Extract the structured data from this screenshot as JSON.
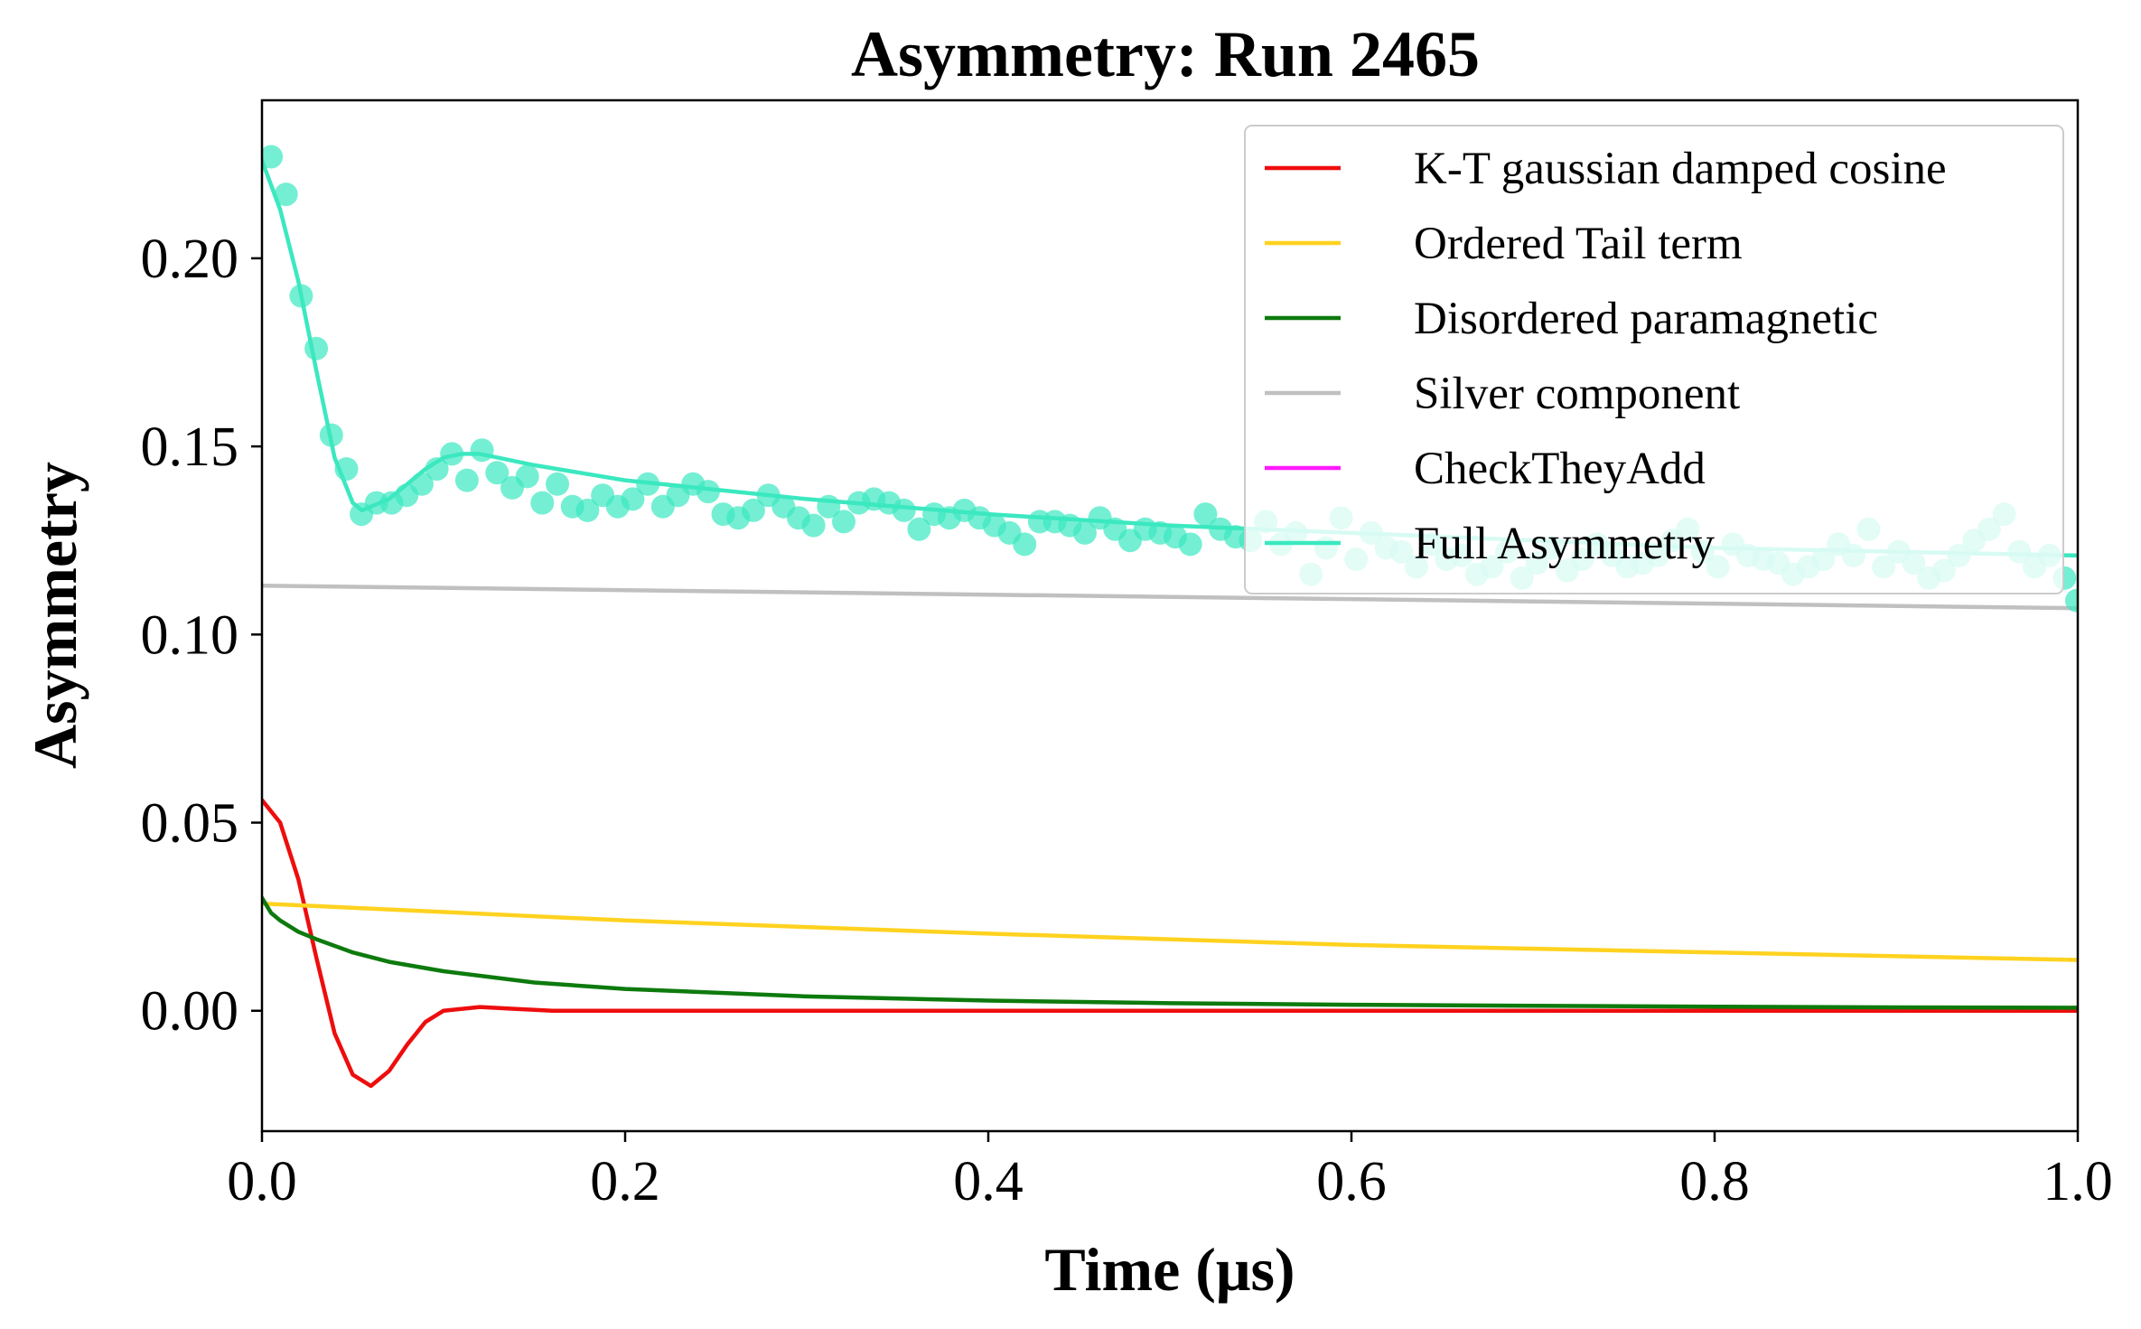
{
  "chart_data": {
    "type": "line",
    "title": "Asymmetry: Run 2465",
    "xlabel": "Time (μs)",
    "ylabel": "Asymmetry",
    "xlim": [
      0,
      1.0
    ],
    "ylim": [
      -0.032,
      0.242
    ],
    "xticks": [
      {
        "value": 0.0,
        "label": "0.0"
      },
      {
        "value": 0.2,
        "label": "0.2"
      },
      {
        "value": 0.4,
        "label": "0.4"
      },
      {
        "value": 0.6,
        "label": "0.6"
      },
      {
        "value": 0.8,
        "label": "0.8"
      },
      {
        "value": 1.0,
        "label": "1.0"
      }
    ],
    "yticks": [
      {
        "value": 0.0,
        "label": "0.00"
      },
      {
        "value": 0.05,
        "label": "0.05"
      },
      {
        "value": 0.1,
        "label": "0.10"
      },
      {
        "value": 0.15,
        "label": "0.15"
      },
      {
        "value": 0.2,
        "label": "0.20"
      }
    ],
    "grid": false,
    "legend_position": "top-right",
    "series": [
      {
        "name": "K-T gaussian damped cosine",
        "color": "#ee0d0d",
        "x": [
          0.0,
          0.01,
          0.02,
          0.03,
          0.04,
          0.05,
          0.06,
          0.07,
          0.08,
          0.09,
          0.1,
          0.12,
          0.14,
          0.16,
          0.2,
          0.4,
          0.6,
          0.8,
          1.0
        ],
        "y": [
          0.056,
          0.05,
          0.035,
          0.014,
          -0.006,
          -0.017,
          -0.02,
          -0.016,
          -0.009,
          -0.003,
          0.0,
          0.001,
          0.0005,
          0.0,
          0.0,
          0.0,
          0.0,
          0.0,
          0.0
        ]
      },
      {
        "name": "Ordered Tail term",
        "color": "#ffd21f",
        "x": [
          0.0,
          0.2,
          0.4,
          0.6,
          0.8,
          1.0
        ],
        "y": [
          0.0285,
          0.024,
          0.0205,
          0.0175,
          0.0155,
          0.0135
        ]
      },
      {
        "name": "Disordered paramagnetic",
        "color": "#0d7a0d",
        "x": [
          0.0,
          0.005,
          0.01,
          0.02,
          0.03,
          0.05,
          0.07,
          0.1,
          0.15,
          0.2,
          0.3,
          0.4,
          0.5,
          0.6,
          0.7,
          0.8,
          0.9,
          1.0
        ],
        "y": [
          0.03,
          0.026,
          0.024,
          0.021,
          0.019,
          0.0155,
          0.013,
          0.0105,
          0.0075,
          0.0058,
          0.0038,
          0.0027,
          0.002,
          0.0016,
          0.0013,
          0.0011,
          0.0009,
          0.0008
        ]
      },
      {
        "name": "Silver component",
        "color": "#c0c0c0",
        "x": [
          0.0,
          1.0
        ],
        "y": [
          0.113,
          0.107
        ]
      },
      {
        "name": "CheckTheyAdd",
        "color": "#ff1aff",
        "x": [],
        "y": []
      },
      {
        "name": "Full Asymmetry",
        "color": "#3be8c0",
        "x": [
          0.0,
          0.01,
          0.02,
          0.03,
          0.04,
          0.05,
          0.055,
          0.06,
          0.07,
          0.08,
          0.09,
          0.1,
          0.11,
          0.12,
          0.13,
          0.15,
          0.2,
          0.3,
          0.4,
          0.5,
          0.6,
          0.7,
          0.8,
          0.9,
          1.0
        ],
        "y": [
          0.226,
          0.213,
          0.194,
          0.17,
          0.147,
          0.135,
          0.133,
          0.134,
          0.136,
          0.14,
          0.144,
          0.147,
          0.148,
          0.148,
          0.147,
          0.145,
          0.141,
          0.136,
          0.132,
          0.129,
          0.127,
          0.125,
          0.123,
          0.122,
          0.121
        ]
      }
    ],
    "scatter": {
      "color": "#3be8c0",
      "x": [
        0.005,
        0.0133,
        0.0216,
        0.0299,
        0.0382,
        0.0465,
        0.0548,
        0.0631,
        0.0714,
        0.0797,
        0.088,
        0.0963,
        0.1046,
        0.1129,
        0.1212,
        0.1295,
        0.1378,
        0.1461,
        0.1544,
        0.1627,
        0.171,
        0.1793,
        0.1876,
        0.1959,
        0.2042,
        0.2125,
        0.2208,
        0.2291,
        0.2374,
        0.2457,
        0.254,
        0.2623,
        0.2706,
        0.2789,
        0.2872,
        0.2955,
        0.3038,
        0.3121,
        0.3204,
        0.3287,
        0.337,
        0.3453,
        0.3536,
        0.3619,
        0.3702,
        0.3785,
        0.3868,
        0.3951,
        0.4034,
        0.4117,
        0.42,
        0.4283,
        0.4366,
        0.4449,
        0.4532,
        0.4615,
        0.4698,
        0.4781,
        0.4864,
        0.4947,
        0.503,
        0.5113,
        0.5196,
        0.5279,
        0.5362,
        0.5445,
        0.5528,
        0.5611,
        0.5694,
        0.5777,
        0.586,
        0.5943,
        0.6026,
        0.6109,
        0.6192,
        0.6275,
        0.6358,
        0.6441,
        0.6524,
        0.6607,
        0.669,
        0.6773,
        0.6856,
        0.6939,
        0.7022,
        0.7105,
        0.7188,
        0.7271,
        0.7354,
        0.7437,
        0.752,
        0.7603,
        0.7686,
        0.7769,
        0.7852,
        0.7935,
        0.8018,
        0.8101,
        0.8184,
        0.8267,
        0.835,
        0.8433,
        0.8516,
        0.8599,
        0.8682,
        0.8765,
        0.8848,
        0.8931,
        0.9014,
        0.9097,
        0.918,
        0.9263,
        0.9346,
        0.9429,
        0.9512,
        0.9595,
        0.9678,
        0.9761,
        0.9844,
        0.9927,
        0.9995
      ],
      "y": [
        0.227,
        0.217,
        0.19,
        0.176,
        0.153,
        0.144,
        0.132,
        0.135,
        0.135,
        0.137,
        0.14,
        0.144,
        0.148,
        0.141,
        0.149,
        0.143,
        0.139,
        0.142,
        0.135,
        0.14,
        0.134,
        0.133,
        0.137,
        0.134,
        0.136,
        0.14,
        0.134,
        0.137,
        0.14,
        0.138,
        0.132,
        0.131,
        0.133,
        0.137,
        0.134,
        0.131,
        0.129,
        0.134,
        0.13,
        0.135,
        0.136,
        0.135,
        0.133,
        0.128,
        0.132,
        0.131,
        0.133,
        0.131,
        0.129,
        0.127,
        0.124,
        0.13,
        0.13,
        0.129,
        0.127,
        0.131,
        0.128,
        0.125,
        0.128,
        0.127,
        0.126,
        0.124,
        0.132,
        0.128,
        0.126,
        0.125,
        0.13,
        0.124,
        0.127,
        0.116,
        0.123,
        0.131,
        0.12,
        0.127,
        0.123,
        0.122,
        0.118,
        0.124,
        0.12,
        0.121,
        0.116,
        0.118,
        0.122,
        0.115,
        0.119,
        0.123,
        0.117,
        0.12,
        0.124,
        0.121,
        0.118,
        0.119,
        0.121,
        0.125,
        0.128,
        0.122,
        0.118,
        0.124,
        0.121,
        0.12,
        0.119,
        0.116,
        0.118,
        0.12,
        0.124,
        0.121,
        0.128,
        0.118,
        0.122,
        0.119,
        0.115,
        0.117,
        0.121,
        0.125,
        0.128,
        0.132,
        0.122,
        0.118,
        0.121,
        0.115,
        0.109
      ]
    }
  }
}
